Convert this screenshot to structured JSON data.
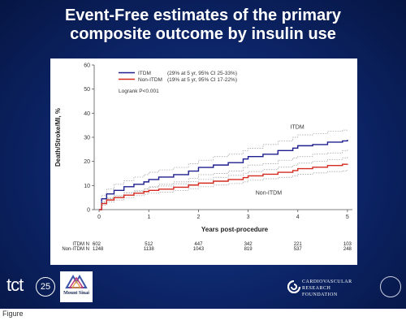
{
  "slide": {
    "title_line1": "Event-Free estimates of the primary",
    "title_line2": "composite outcome by insulin use",
    "caption": "Figure"
  },
  "branding": {
    "tct_text": "tct",
    "tct_number": "25",
    "sinai_text": "Mount Sinai",
    "crf_lines": [
      "CARDIOVASCULAR",
      "RESEARCH",
      "FOUNDATION"
    ]
  },
  "colors": {
    "itdm": "#1f1f8f",
    "non_itdm": "#d42a1f",
    "ci": "#9a9a9a",
    "slide_bg": "#0c2466"
  },
  "chart_data": {
    "type": "line",
    "title": "",
    "xlabel": "Years post-procedure",
    "ylabel": "Death/Stroke/MI, %",
    "xlim": [
      -0.1,
      5.1
    ],
    "ylim": [
      0,
      60
    ],
    "xticks": [
      0,
      1,
      2,
      3,
      4,
      5
    ],
    "yticks": [
      0,
      10,
      20,
      30,
      40,
      50,
      60
    ],
    "grid": false,
    "legend_position": "top-left",
    "legend": [
      {
        "series": "ITDM",
        "label": "ITDM",
        "detail": "(29% at 5 yr, 95% CI 25-33%)"
      },
      {
        "series": "Non-ITDM",
        "label": "Non-ITDM",
        "detail": "(19% at 5 yr, 95% CI 17-22%)"
      }
    ],
    "annotation": "Logrank P<0.001",
    "series": [
      {
        "name": "ITDM",
        "label_text": "ITDM",
        "label_at": [
          3.85,
          33.5
        ],
        "color": "#1f1f8f",
        "x": [
          0,
          0.05,
          0.15,
          0.3,
          0.5,
          0.7,
          0.9,
          1.0,
          1.2,
          1.5,
          1.8,
          2.0,
          2.3,
          2.6,
          2.9,
          3.0,
          3.3,
          3.6,
          3.9,
          4.0,
          4.3,
          4.6,
          4.9,
          5.0
        ],
        "y": [
          0,
          4.5,
          6.5,
          8.0,
          9.5,
          10.5,
          11.5,
          12.5,
          13.5,
          14.5,
          16.0,
          17.5,
          18.5,
          19.5,
          21.0,
          22.0,
          23.0,
          24.5,
          25.5,
          26.5,
          27.0,
          28.0,
          28.5,
          29.0
        ],
        "ci_upper": [
          0,
          6.0,
          8.5,
          10.5,
          12.0,
          13.5,
          14.5,
          15.5,
          16.5,
          17.5,
          19.0,
          20.5,
          22.0,
          23.0,
          24.5,
          25.5,
          27.0,
          28.5,
          30.0,
          31.0,
          31.5,
          32.5,
          33.0,
          33.0
        ],
        "ci_lower": [
          0,
          3.0,
          4.5,
          5.5,
          7.0,
          7.5,
          8.5,
          9.5,
          10.5,
          11.5,
          13.0,
          14.5,
          15.0,
          16.0,
          17.5,
          18.5,
          19.0,
          20.5,
          21.5,
          22.0,
          23.0,
          23.5,
          24.5,
          25.0
        ]
      },
      {
        "name": "Non-ITDM",
        "label_text": "Non-ITDM",
        "label_at": [
          3.15,
          6.2
        ],
        "color": "#d42a1f",
        "x": [
          0,
          0.05,
          0.15,
          0.3,
          0.5,
          0.7,
          0.9,
          1.0,
          1.2,
          1.5,
          1.8,
          2.0,
          2.3,
          2.6,
          2.9,
          3.0,
          3.3,
          3.6,
          3.9,
          4.0,
          4.3,
          4.6,
          4.9,
          5.0
        ],
        "y": [
          0,
          2.5,
          4.0,
          5.0,
          6.0,
          6.8,
          7.5,
          8.0,
          8.5,
          9.3,
          10.2,
          11.0,
          11.8,
          12.5,
          13.3,
          14.0,
          14.7,
          15.5,
          16.2,
          17.0,
          17.6,
          18.3,
          18.8,
          19.0
        ],
        "ci_upper": [
          0,
          3.2,
          4.8,
          6.0,
          7.0,
          7.8,
          8.6,
          9.2,
          9.8,
          10.7,
          11.7,
          12.5,
          13.4,
          14.2,
          15.1,
          15.8,
          16.6,
          17.6,
          18.4,
          19.3,
          20.0,
          20.8,
          21.5,
          22.0
        ],
        "ci_lower": [
          0,
          1.8,
          3.2,
          4.0,
          5.0,
          5.8,
          6.4,
          6.8,
          7.2,
          7.9,
          8.7,
          9.5,
          10.2,
          10.8,
          11.5,
          12.2,
          12.8,
          13.4,
          14.0,
          14.7,
          15.2,
          15.8,
          16.1,
          16.5
        ]
      }
    ],
    "risk_table": {
      "rows": [
        {
          "label": "ITDM N",
          "values": [
            "602",
            "512",
            "447",
            "342",
            "221",
            "103"
          ]
        },
        {
          "label": "Non-ITDM N",
          "values": [
            "1248",
            "1138",
            "1043",
            "819",
            "537",
            "248"
          ]
        }
      ]
    }
  }
}
